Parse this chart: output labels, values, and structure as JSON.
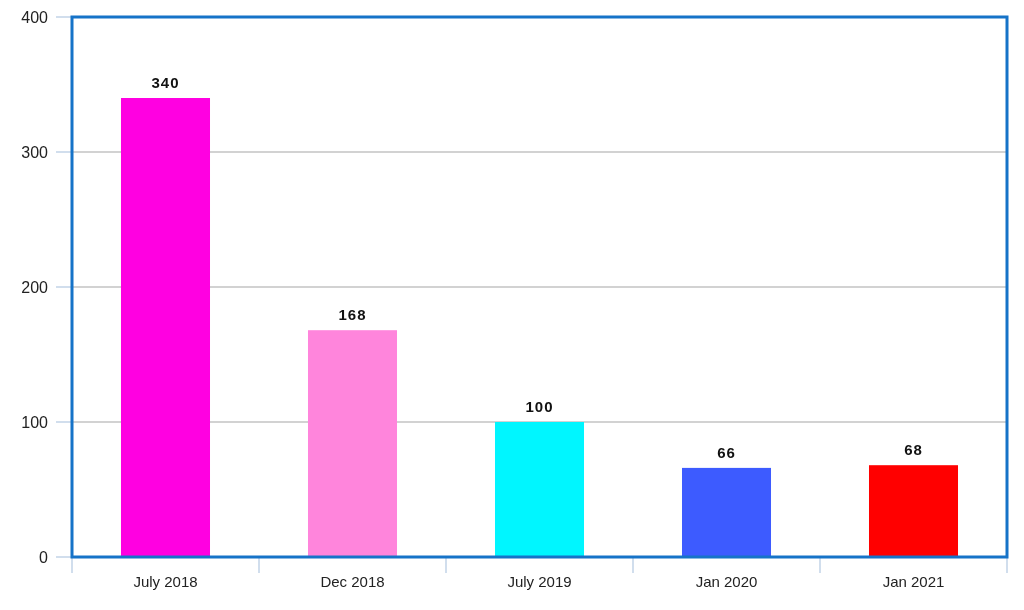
{
  "chart_data": {
    "type": "bar",
    "categories": [
      "July 2018",
      "Dec 2018",
      "July 2019",
      "Jan 2020",
      "Jan 2021"
    ],
    "values": [
      340,
      168,
      100,
      66,
      68
    ],
    "colors": [
      "#ff00e1",
      "#ff85dc",
      "#00f6ff",
      "#3d5bff",
      "#ff0000"
    ],
    "ylim": [
      0,
      400
    ],
    "yticks": [
      0,
      100,
      200,
      300,
      400
    ],
    "grid": "y",
    "data_labels": true
  }
}
